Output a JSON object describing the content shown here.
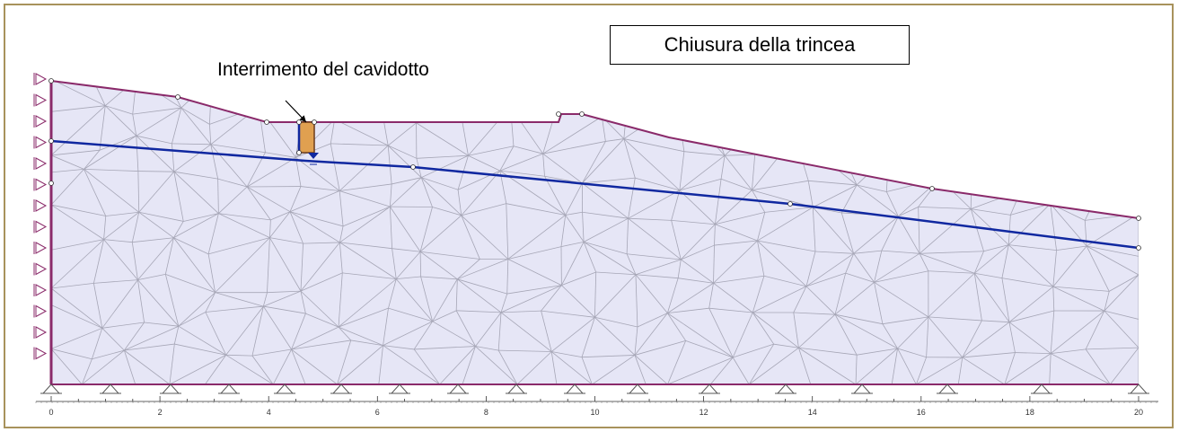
{
  "title": "Chiusura della trincea",
  "callout": "Interrimento del cavidotto",
  "colors": {
    "soil_fill": "#e6e6f6",
    "mesh": "#a6a6b6",
    "surface": "#8a2a6a",
    "water_table": "#1028a0",
    "trench": "#e0a050",
    "frame": "#a8925c"
  },
  "ruler": {
    "labels": [
      "0",
      "2",
      "4",
      "6",
      "8",
      "10",
      "12",
      "14",
      "16",
      "18",
      "20"
    ]
  }
}
